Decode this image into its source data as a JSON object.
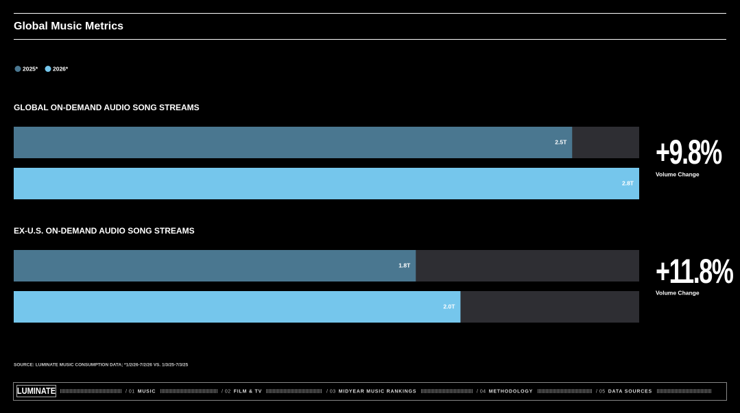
{
  "title": "Global Music Metrics",
  "chart_data": {
    "type": "bar",
    "orientation": "horizontal",
    "categories": [
      "GLOBAL ON-DEMAND AUDIO SONG STREAMS",
      "EX-U.S. ON-DEMAND AUDIO SONG STREAMS"
    ],
    "series": [
      {
        "name": "2025*",
        "color": "#4a7790",
        "values": [
          2.5,
          1.8
        ],
        "value_labels": [
          "2.5T",
          "1.8T"
        ]
      },
      {
        "name": "2026*",
        "color": "#75c6ec",
        "values": [
          2.8,
          2.0
        ],
        "value_labels": [
          "2.8T",
          "2.0T"
        ]
      }
    ],
    "xlim": [
      0,
      2.8
    ],
    "track_color": "#2e2e33",
    "legend": "top-left",
    "annotations": [
      {
        "text": "+9.8%",
        "subtext": "Volume Change"
      },
      {
        "text": "+11.8%",
        "subtext": "Volume Change"
      }
    ]
  },
  "source": "SOURCE: LUMINATE MUSIC CONSUMPTION DATA; *1/2/26-7/2/26 VS. 1/3/25-7/3/25",
  "footer": {
    "logo": "LUMINATE",
    "nav": [
      {
        "number": "/ 01",
        "label": "MUSIC"
      },
      {
        "number": "/ 02",
        "label": "FILM & TV"
      },
      {
        "number": "/ 03",
        "label": "MIDYEAR MUSIC RANKINGS"
      },
      {
        "number": "/ 04",
        "label": "METHODOLOGY"
      },
      {
        "number": "/ 05",
        "label": "DATA SOURCES"
      }
    ]
  }
}
